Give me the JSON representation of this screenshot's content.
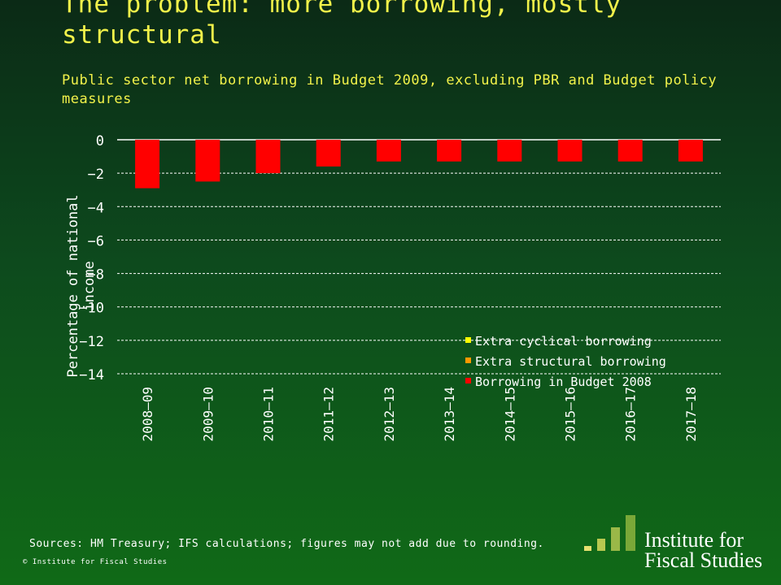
{
  "slide": {
    "title": "The problem: more borrowing, mostly structural",
    "subtitle": "Public sector net borrowing in Budget 2009, excluding PBR and Budget policy measures",
    "sources": "Sources: HM Treasury; IFS calculations; figures may not add due to rounding.",
    "copyright": "© Institute for Fiscal Studies",
    "logo_text_line1": "Institute for",
    "logo_text_line2": "Fiscal Studies"
  },
  "colors": {
    "title": "#f2f24a",
    "extra_cyclical": "#ffff00",
    "extra_structural": "#ff9900",
    "budget_2008": "#ff0000"
  },
  "chart_data": {
    "type": "bar",
    "title": "",
    "xlabel": "",
    "ylabel": "Percentage of national income",
    "ylim": [
      -14,
      0
    ],
    "yticks": [
      0,
      -2,
      -4,
      -6,
      -8,
      -10,
      -12,
      -14
    ],
    "grid": true,
    "legend_position": "bottom-right",
    "categories": [
      "2008–09",
      "2009–10",
      "2010–11",
      "2011–12",
      "2012–13",
      "2013–14",
      "2014–15",
      "2015–16",
      "2016–17",
      "2017–18"
    ],
    "series": [
      {
        "name": "Extra cyclical borrowing",
        "color": "#ffff00",
        "values": [
          0,
          0,
          0,
          0,
          0,
          0,
          0,
          0,
          0,
          0
        ]
      },
      {
        "name": "Extra structural borrowing",
        "color": "#ff9900",
        "values": [
          0,
          0,
          0,
          0,
          0,
          0,
          0,
          0,
          0,
          0
        ]
      },
      {
        "name": "Borrowing in Budget 2008",
        "color": "#ff0000",
        "values": [
          -2.9,
          -2.5,
          -2.0,
          -1.6,
          -1.3,
          -1.3,
          -1.3,
          -1.3,
          -1.3,
          -1.3
        ]
      }
    ]
  }
}
